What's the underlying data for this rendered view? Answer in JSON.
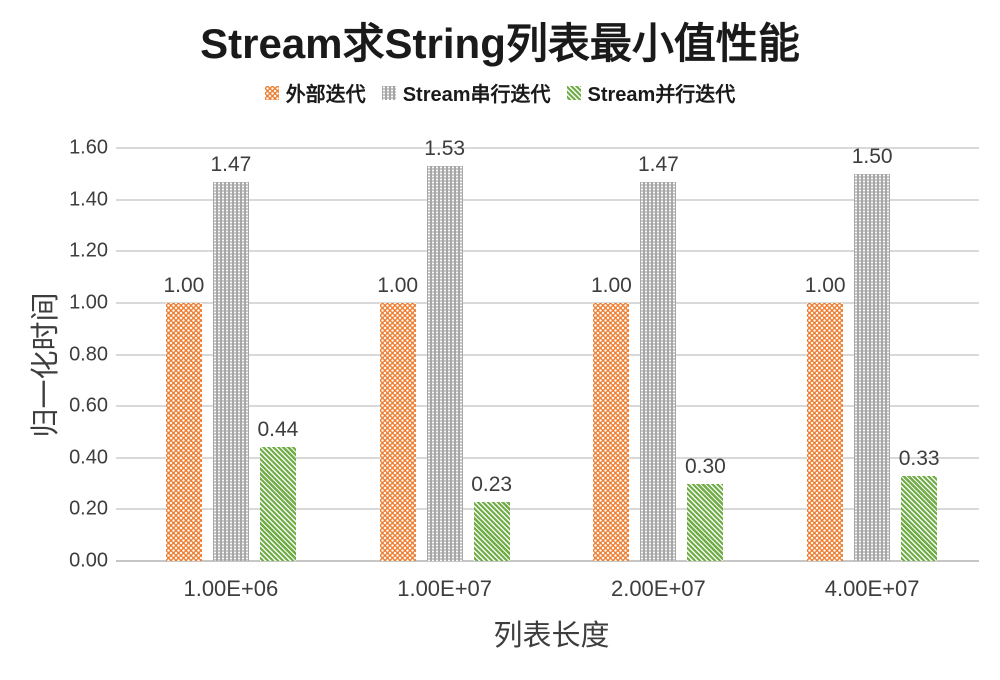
{
  "title": "Stream求String列表最小值性能",
  "axes": {
    "xlabel": "列表长度",
    "ylabel": "归一化时间"
  },
  "colors": {
    "series_orange": "#ED7D31",
    "series_gray": "#A6A6A6",
    "series_green": "#70AD47",
    "gridline": "#D9D9D9",
    "text": "#3D3D3D"
  },
  "chart_data": {
    "type": "bar",
    "title": "Stream求String列表最小值性能",
    "categories": [
      "1.00E+06",
      "1.00E+07",
      "2.00E+07",
      "4.00E+07"
    ],
    "series": [
      {
        "name": "外部迭代",
        "color": "#ED7D31",
        "pattern": "pat-dots-stag",
        "values": [
          1.0,
          1.0,
          1.0,
          1.0
        ],
        "labels": [
          "1.00",
          "1.00",
          "1.00",
          "1.00"
        ]
      },
      {
        "name": "Stream串行迭代",
        "color": "#A6A6A6",
        "pattern": "pat-dots",
        "values": [
          1.47,
          1.53,
          1.47,
          1.5
        ],
        "labels": [
          "1.47",
          "1.53",
          "1.47",
          "1.50"
        ]
      },
      {
        "name": "Stream并行迭代",
        "color": "#70AD47",
        "pattern": "pat-diag",
        "values": [
          0.44,
          0.23,
          0.3,
          0.33
        ],
        "labels": [
          "0.44",
          "0.23",
          "0.30",
          "0.33"
        ]
      }
    ],
    "xlabel": "列表长度",
    "ylabel": "归一化时间",
    "ylim": [
      0,
      1.6
    ],
    "ytick_step": 0.2,
    "yticks": [
      "0.00",
      "0.20",
      "0.40",
      "0.60",
      "0.80",
      "1.00",
      "1.20",
      "1.40",
      "1.60"
    ],
    "grid": true,
    "legend_position": "top"
  }
}
